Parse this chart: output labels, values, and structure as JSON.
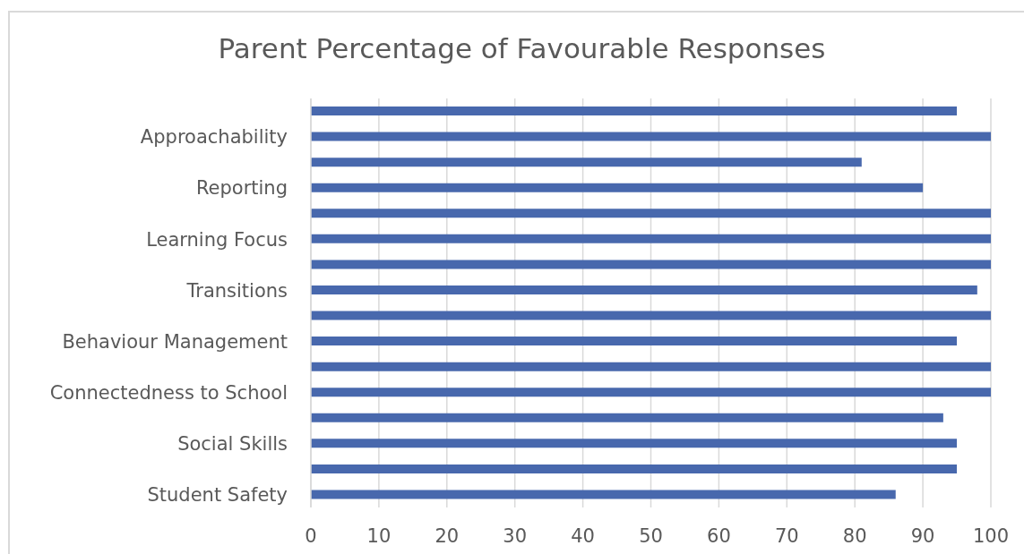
{
  "chart_data": {
    "type": "bar",
    "title": "Parent Percentage of Favourable Responses",
    "orientation": "horizontal",
    "categories": [
      null,
      "Approachability",
      null,
      "Reporting",
      null,
      "Learning Focus",
      null,
      "Transitions",
      null,
      "Behaviour Management",
      null,
      "Connectedness to School",
      null,
      "Social Skills",
      null,
      "Student Safety"
    ],
    "values": [
      95,
      100,
      81,
      90,
      100,
      100,
      100,
      98,
      100,
      95,
      100,
      100,
      93,
      95,
      95,
      86
    ],
    "color": "#4868ad",
    "xlim": [
      0,
      100
    ],
    "xticks": [
      0,
      10,
      20,
      30,
      40,
      50,
      60,
      70,
      80,
      90,
      100
    ],
    "grid": "x"
  }
}
